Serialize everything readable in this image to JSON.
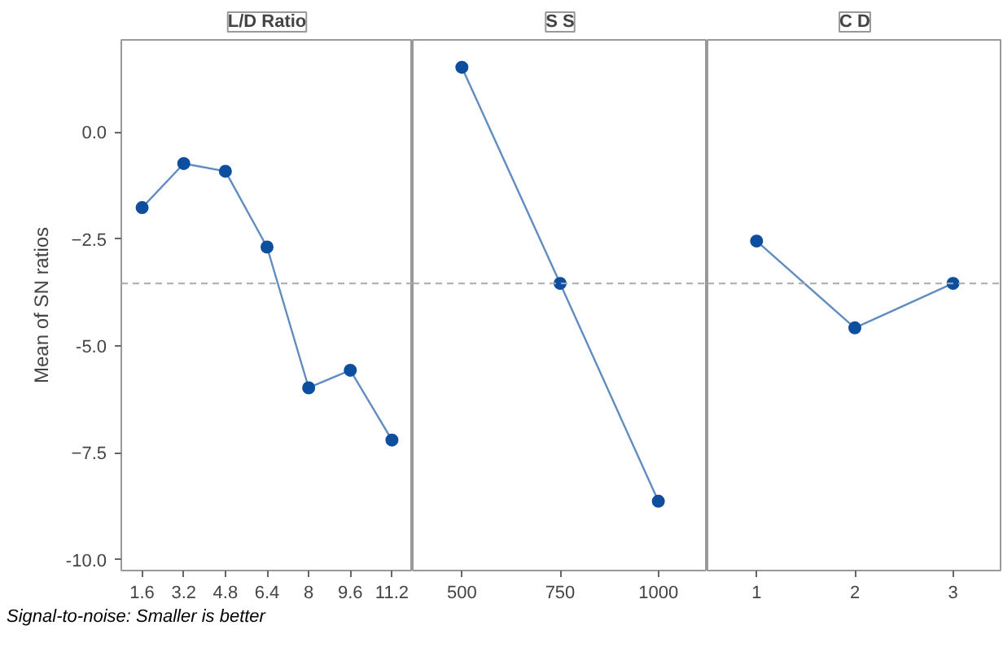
{
  "chart_data": [
    {
      "type": "line",
      "title": "L/D Ratio",
      "ylabel": "Mean of SN ratios",
      "categories": [
        "1.6",
        "3.2",
        "4.8",
        "6.4",
        "8",
        "9.6",
        "11.2"
      ],
      "series": [
        {
          "color": "#0d4f9e",
          "values": [
            -1.77,
            -0.74,
            -0.92,
            -2.69,
            -5.98,
            -5.57,
            -7.2
          ]
        }
      ],
      "ylim": [
        -10.25,
        2.15
      ],
      "yticks": [
        {
          "value": 0,
          "label": "0.0"
        },
        -2.5,
        {
          "value": -5,
          "label": "-5.0"
        },
        -7.5,
        {
          "value": -10,
          "label": "-10.0"
        }
      ],
      "ref_lines": [
        {
          "axis": "y",
          "value": -3.54,
          "line_style": "dashed",
          "color": "#aaaaaa"
        }
      ],
      "marker": "circle",
      "grid": false,
      "annotations": [
        "Signal-to-noise: Smaller is better"
      ]
    },
    {
      "type": "line",
      "title": "S S",
      "categories": [
        "500",
        "750",
        "1000"
      ],
      "series": [
        {
          "color": "#0d4f9e",
          "values": [
            1.51,
            -3.54,
            -8.63
          ]
        }
      ],
      "ylim": [
        -10.25,
        2.15
      ],
      "ref_lines": [
        {
          "axis": "y",
          "value": -3.54,
          "line_style": "dashed",
          "color": "#aaaaaa"
        }
      ],
      "marker": "circle",
      "grid": false,
      "tick_labels": "x"
    },
    {
      "type": "line",
      "title": "C D",
      "categories": [
        "1",
        "2",
        "3"
      ],
      "series": [
        {
          "color": "#0d4f9e",
          "values": [
            -2.55,
            -4.58,
            -3.54
          ]
        }
      ],
      "ylim": [
        -10.25,
        2.15
      ],
      "ref_lines": [
        {
          "axis": "y",
          "value": -3.54,
          "line_style": "dashed",
          "color": "#aaaaaa"
        }
      ],
      "marker": "circle",
      "grid": false,
      "tick_labels": "x"
    }
  ]
}
